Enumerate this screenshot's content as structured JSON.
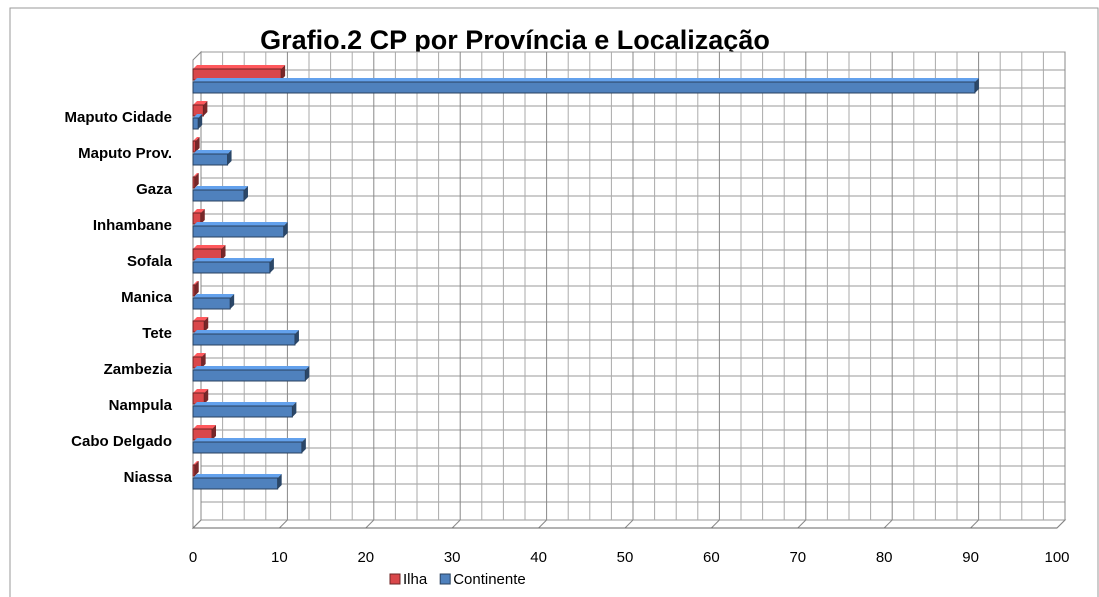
{
  "chart_data": {
    "type": "bar",
    "orientation": "horizontal",
    "title": "Grafio.2  CP por Província e Localização",
    "categories": [
      null,
      "Maputo Cidade",
      "Maputo Prov.",
      "Gaza",
      "Inhambane",
      "Sofala",
      "Manica",
      "Tete",
      "Zambezia",
      "Nampula",
      "Cabo Delgado",
      "Niassa"
    ],
    "series": [
      {
        "name": "Ilha",
        "color": "#d9474a",
        "values": [
          10.2,
          1.2,
          0.3,
          0.2,
          0.9,
          3.3,
          0.2,
          1.3,
          1.0,
          1.3,
          2.2,
          0.2
        ]
      },
      {
        "name": "Continente",
        "color": "#4f81bd",
        "values": [
          90.5,
          0.6,
          4.0,
          5.9,
          10.5,
          8.9,
          4.3,
          11.8,
          13.0,
          11.5,
          12.6,
          9.8
        ]
      }
    ],
    "xlim": [
      0,
      100
    ],
    "xticks": [
      0,
      10,
      20,
      30,
      40,
      50,
      60,
      70,
      80,
      90,
      100
    ],
    "grid": true,
    "legend": "bottom"
  }
}
